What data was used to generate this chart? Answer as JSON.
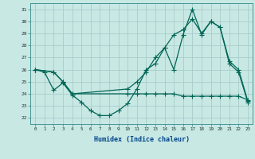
{
  "xlabel": "Humidex (Indice chaleur)",
  "background_color": "#c8e8e4",
  "grid_color": "#a8cccc",
  "line_color": "#006655",
  "xlim": [
    -0.5,
    23.5
  ],
  "ylim": [
    21.5,
    31.5
  ],
  "xticks": [
    0,
    1,
    2,
    3,
    4,
    5,
    6,
    7,
    8,
    9,
    10,
    11,
    12,
    13,
    14,
    15,
    16,
    17,
    18,
    19,
    20,
    21,
    22,
    23
  ],
  "yticks": [
    22,
    23,
    24,
    25,
    26,
    27,
    28,
    29,
    30,
    31
  ],
  "line1_x": [
    0,
    1,
    2,
    3,
    4,
    5,
    6,
    7,
    8,
    9,
    10,
    11,
    12,
    13,
    14,
    15,
    16,
    17,
    18,
    19,
    20,
    21,
    22,
    23
  ],
  "line1_y": [
    26.0,
    25.8,
    24.3,
    24.9,
    23.9,
    23.3,
    22.6,
    22.2,
    22.2,
    22.6,
    23.2,
    24.4,
    26.0,
    26.5,
    27.8,
    26.0,
    28.9,
    31.0,
    28.9,
    30.0,
    29.5,
    26.5,
    25.8,
    23.3
  ],
  "line2_x": [
    0,
    2,
    3,
    4,
    10,
    11,
    12,
    13,
    14,
    15,
    16,
    17,
    18,
    19,
    20,
    21,
    22,
    23
  ],
  "line2_y": [
    26.0,
    25.8,
    25.0,
    24.0,
    24.0,
    24.0,
    24.0,
    24.0,
    24.0,
    24.0,
    23.8,
    23.8,
    23.8,
    23.8,
    23.8,
    23.8,
    23.8,
    23.5
  ],
  "line3_x": [
    0,
    2,
    3,
    4,
    10,
    11,
    12,
    13,
    14,
    15,
    16,
    17,
    18,
    19,
    20,
    21,
    22,
    23
  ],
  "line3_y": [
    26.0,
    25.8,
    25.0,
    24.0,
    24.4,
    25.0,
    25.8,
    27.0,
    27.8,
    28.9,
    29.3,
    30.2,
    29.0,
    30.0,
    29.5,
    26.7,
    26.0,
    23.4
  ]
}
